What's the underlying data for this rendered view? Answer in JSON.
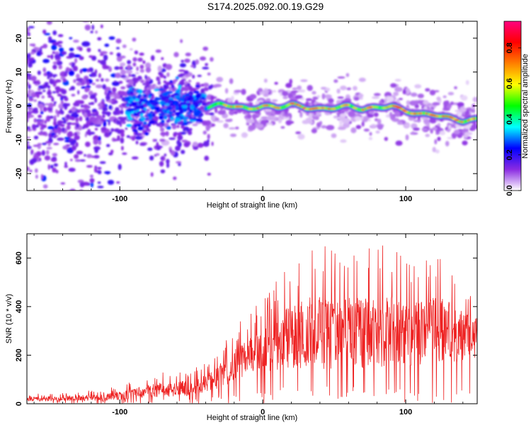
{
  "title": "S174.2025.092.00.19.G29",
  "chart_data": [
    {
      "type": "heatmap",
      "xlabel": "Height of straight line (km)",
      "ylabel": "Frequency (Hz)",
      "xlim": [
        -165,
        150
      ],
      "ylim": [
        -25,
        25
      ],
      "x_ticks": [
        -100,
        0,
        100
      ],
      "y_ticks": [
        -20,
        -10,
        0,
        10,
        20
      ],
      "colorbar": {
        "label": "Normalized spectral amplitude",
        "range": [
          0,
          0.95
        ],
        "ticks": [
          "0.0",
          "0.2",
          "0.4",
          "0.6",
          "0.8"
        ],
        "colors": [
          "#ffffff",
          "#8a2be2",
          "#0000ff",
          "#00ffff",
          "#00ff00",
          "#ffff00",
          "#ff8000",
          "#ff0000",
          "#ff0080"
        ]
      },
      "ridge": {
        "x": [
          -40,
          -30,
          -20,
          -10,
          0,
          10,
          20,
          30,
          40,
          50,
          60,
          70,
          80,
          90,
          100,
          110,
          120,
          130,
          140,
          150
        ],
        "frequency": [
          -0.5,
          0.5,
          0,
          -1,
          0,
          -0.5,
          0.5,
          -0.5,
          -1,
          -0.5,
          0,
          -1,
          -0.5,
          0,
          -1.5,
          -2.5,
          -2.5,
          -3.5,
          -4.5,
          -4
        ]
      }
    },
    {
      "type": "line",
      "xlabel": "Height of straight line (km)",
      "ylabel": "SNR (10 * v/v)",
      "xlim": [
        -165,
        150
      ],
      "ylim": [
        0,
        700
      ],
      "x_ticks": [
        -100,
        0,
        100
      ],
      "y_ticks": [
        0,
        200,
        400,
        600
      ],
      "color": "#ee2222",
      "envelope": {
        "x": [
          -165,
          -140,
          -110,
          -90,
          -70,
          -50,
          -40,
          -30,
          -20,
          -10,
          0,
          10,
          20,
          30,
          40,
          50,
          60,
          70,
          80,
          90,
          100,
          110,
          120,
          130,
          140,
          150
        ],
        "mean": [
          18,
          20,
          25,
          40,
          55,
          60,
          80,
          110,
          150,
          190,
          210,
          240,
          260,
          270,
          280,
          270,
          280,
          275,
          285,
          280,
          270,
          275,
          285,
          270,
          265,
          260
        ],
        "max": [
          40,
          45,
          60,
          100,
          130,
          140,
          170,
          240,
          310,
          380,
          430,
          520,
          600,
          640,
          680,
          630,
          650,
          670,
          640,
          680,
          610,
          600,
          660,
          620,
          520,
          470
        ]
      }
    }
  ]
}
